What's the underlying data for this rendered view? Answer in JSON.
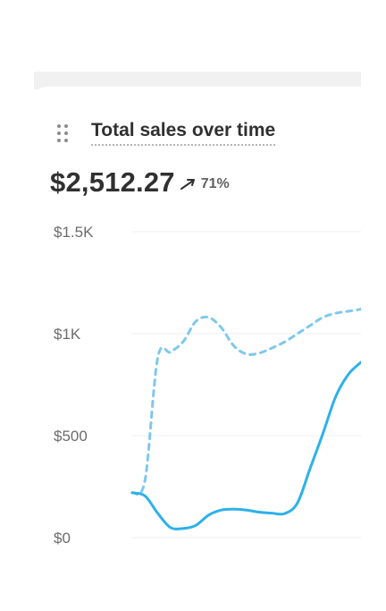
{
  "card": {
    "title": "Total sales over time",
    "value": "$2,512.27",
    "trend": {
      "direction": "up",
      "icon": "arrow-up-right-icon",
      "percent": "71%"
    }
  },
  "chart_data": {
    "type": "line",
    "title": "Total sales over time",
    "xlabel": "",
    "ylabel": "",
    "ylim": [
      0,
      1500
    ],
    "yticks": [
      "$1.5K",
      "$1K",
      "$500",
      "$0"
    ],
    "ytick_values": [
      1500,
      1000,
      500,
      0
    ],
    "grid": true,
    "x": [
      0,
      0.5,
      1,
      1.5,
      2,
      2.5,
      3,
      3.5,
      4,
      4.5,
      5,
      5.5,
      6,
      6.5,
      7,
      7.5,
      8,
      8.5,
      9
    ],
    "series": [
      {
        "style": "solid",
        "color": "#2db1e9",
        "values": [
          220,
          205,
          120,
          50,
          45,
          60,
          110,
          135,
          140,
          135,
          125,
          120,
          118,
          170,
          340,
          510,
          690,
          800,
          860
        ]
      },
      {
        "style": "dashed",
        "color": "#7ec8ee",
        "values": [
          220,
          280,
          880,
          910,
          960,
          1060,
          1080,
          1030,
          940,
          900,
          905,
          930,
          960,
          1000,
          1040,
          1080,
          1100,
          1110,
          1120
        ]
      }
    ]
  }
}
